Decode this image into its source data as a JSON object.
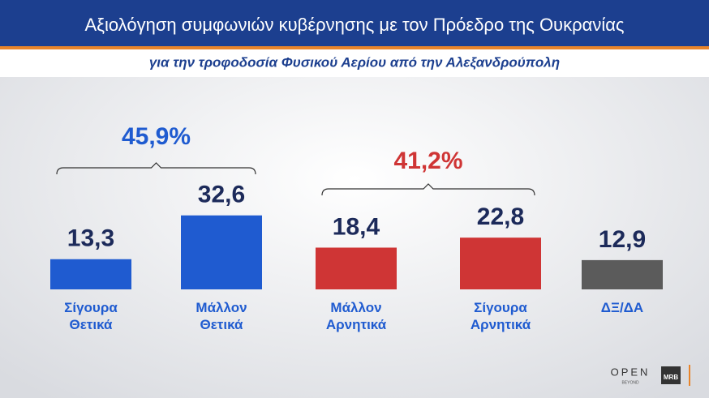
{
  "chart_data": {
    "type": "bar",
    "title": "Αξιολόγηση συμφωνιών κυβέρνησης με τον Πρόεδρο της Ουκρανίας",
    "subtitle": "για την τροφοδοσία Φυσικού Αερίου από την Αλεξανδρούπολη",
    "categories": [
      "Σίγουρα Θετικά",
      "Μάλλον Θετικά",
      "Μάλλον Αρνητικά",
      "Σίγουρα Αρνητικά",
      "ΔΞ/ΔΑ"
    ],
    "values": [
      13.3,
      32.6,
      18.4,
      22.8,
      12.9
    ],
    "value_labels": [
      "13,3",
      "32,6",
      "18,4",
      "22,8",
      "12,9"
    ],
    "colors": [
      "#1f5bd0",
      "#1f5bd0",
      "#cf3535",
      "#cf3535",
      "#5b5b5b"
    ],
    "groups": [
      {
        "value": 45.9,
        "label": "45,9%",
        "color": "#1f5bd0"
      },
      {
        "value": 41.2,
        "label": "41,2%",
        "color": "#cf3535"
      }
    ],
    "logos": [
      "OPEN",
      "BEYOND",
      "MRB"
    ]
  }
}
